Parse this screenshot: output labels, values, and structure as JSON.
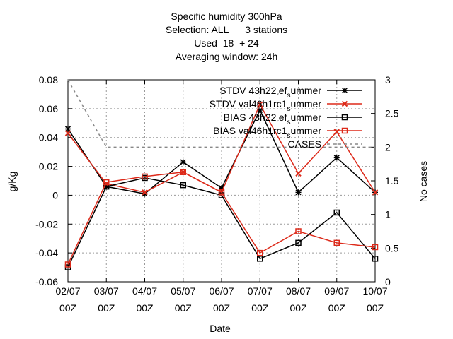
{
  "title_lines": [
    "Specific humidity 300hPa",
    "Selection: ALL      3 stations",
    "Used  18  + 24",
    "Averaging window: 24h"
  ],
  "chart_data": {
    "type": "line",
    "xlabel": "Date",
    "ylabel": "g/Kg",
    "y2label": "No cases",
    "categories": [
      [
        "02/07",
        "00Z"
      ],
      [
        "03/07",
        "00Z"
      ],
      [
        "04/07",
        "00Z"
      ],
      [
        "05/07",
        "00Z"
      ],
      [
        "06/07",
        "00Z"
      ],
      [
        "07/07",
        "00Z"
      ],
      [
        "08/07",
        "00Z"
      ],
      [
        "09/07",
        "00Z"
      ],
      [
        "10/07",
        "00Z"
      ]
    ],
    "ylim": [
      -0.06,
      0.08
    ],
    "yticks": [
      "-0.06",
      "-0.04",
      "-0.02",
      "0",
      "0.02",
      "0.04",
      "0.06",
      "0.08"
    ],
    "y2lim": [
      0,
      3
    ],
    "y2ticks": [
      "0",
      "0.5",
      "1",
      "1.5",
      "2",
      "2.5",
      "3"
    ],
    "grid": true,
    "legend_position": "top-right",
    "series": [
      {
        "name": "STDV 43h22",
        "legend_sub": "ref",
        "legend_mid": "_s",
        "legend_tail": "ummer",
        "legend_display": [
          "STDV 43h22",
          "r",
          "ef",
          "s",
          "ummer"
        ],
        "color": "#000000",
        "marker": "star",
        "axis": "y",
        "values": [
          0.046,
          0.006,
          0.001,
          0.023,
          0.005,
          0.059,
          0.002,
          0.026,
          0.002
        ]
      },
      {
        "name": "STDV val46h1rc1",
        "legend_display": [
          "STDV val46h1rc1",
          "",
          "",
          "s",
          "ummer"
        ],
        "color": "#dd2a1a",
        "marker": "x",
        "axis": "y",
        "values": [
          0.043,
          0.008,
          0.002,
          0.016,
          0.002,
          0.063,
          0.015,
          0.044,
          0.002
        ]
      },
      {
        "name": "BIAS 43h22",
        "legend_display": [
          "BIAS 43h22",
          "r",
          "ef",
          "s",
          "ummer"
        ],
        "color": "#000000",
        "marker": "square",
        "axis": "y",
        "values": [
          -0.05,
          0.006,
          0.012,
          0.007,
          0.0,
          -0.044,
          -0.033,
          -0.012,
          -0.044
        ]
      },
      {
        "name": "BIAS val46h1rc1",
        "legend_display": [
          "BIAS val46h1rc1",
          "",
          "",
          "s",
          "ummer"
        ],
        "color": "#dd2a1a",
        "marker": "square",
        "axis": "y",
        "values": [
          -0.048,
          0.009,
          0.013,
          0.016,
          0.002,
          -0.04,
          -0.025,
          -0.033,
          -0.036
        ]
      },
      {
        "name": "CASES",
        "legend_display": [
          "CASES",
          "",
          "",
          "",
          ""
        ],
        "color": "#888888",
        "marker": "none",
        "dashed": true,
        "axis": "y2",
        "values": [
          3,
          2,
          2,
          2,
          2,
          2,
          2,
          2,
          2
        ]
      }
    ]
  }
}
